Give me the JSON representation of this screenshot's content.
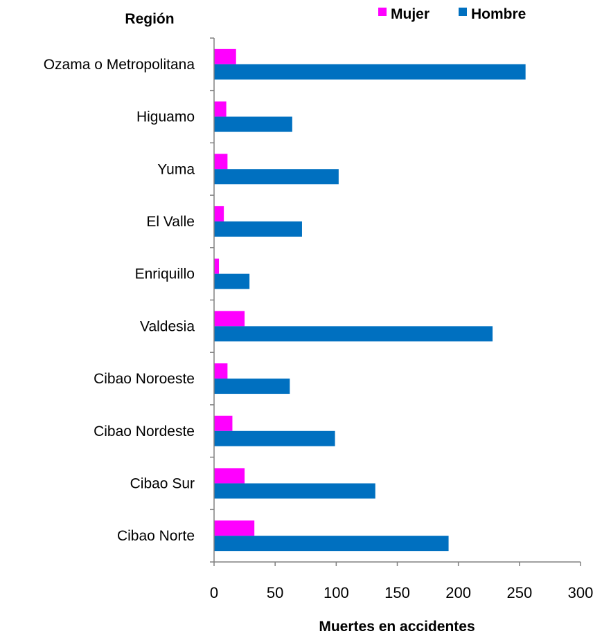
{
  "chart_data": {
    "type": "bar",
    "orientation": "horizontal",
    "y_axis_title": "Región",
    "xlabel": "Muertes en accidentes",
    "xlim": [
      0,
      300
    ],
    "xticks": [
      0,
      50,
      100,
      150,
      200,
      250,
      300
    ],
    "grid": false,
    "legend_position": "top-right",
    "categories": [
      "Ozama o Metropolitana",
      "Higuamo",
      "Yuma",
      "El Valle",
      "Enriquillo",
      "Valdesia",
      "Cibao Noroeste",
      "Cibao Nordeste",
      "Cibao Sur",
      "Cibao Norte"
    ],
    "series": [
      {
        "name": "Mujer",
        "color": "#FF00FF",
        "values": [
          18,
          10,
          11,
          8,
          4,
          25,
          11,
          15,
          25,
          33
        ]
      },
      {
        "name": "Hombre",
        "color": "#0070C0",
        "values": [
          255,
          64,
          102,
          72,
          29,
          228,
          62,
          99,
          132,
          192
        ]
      }
    ]
  }
}
